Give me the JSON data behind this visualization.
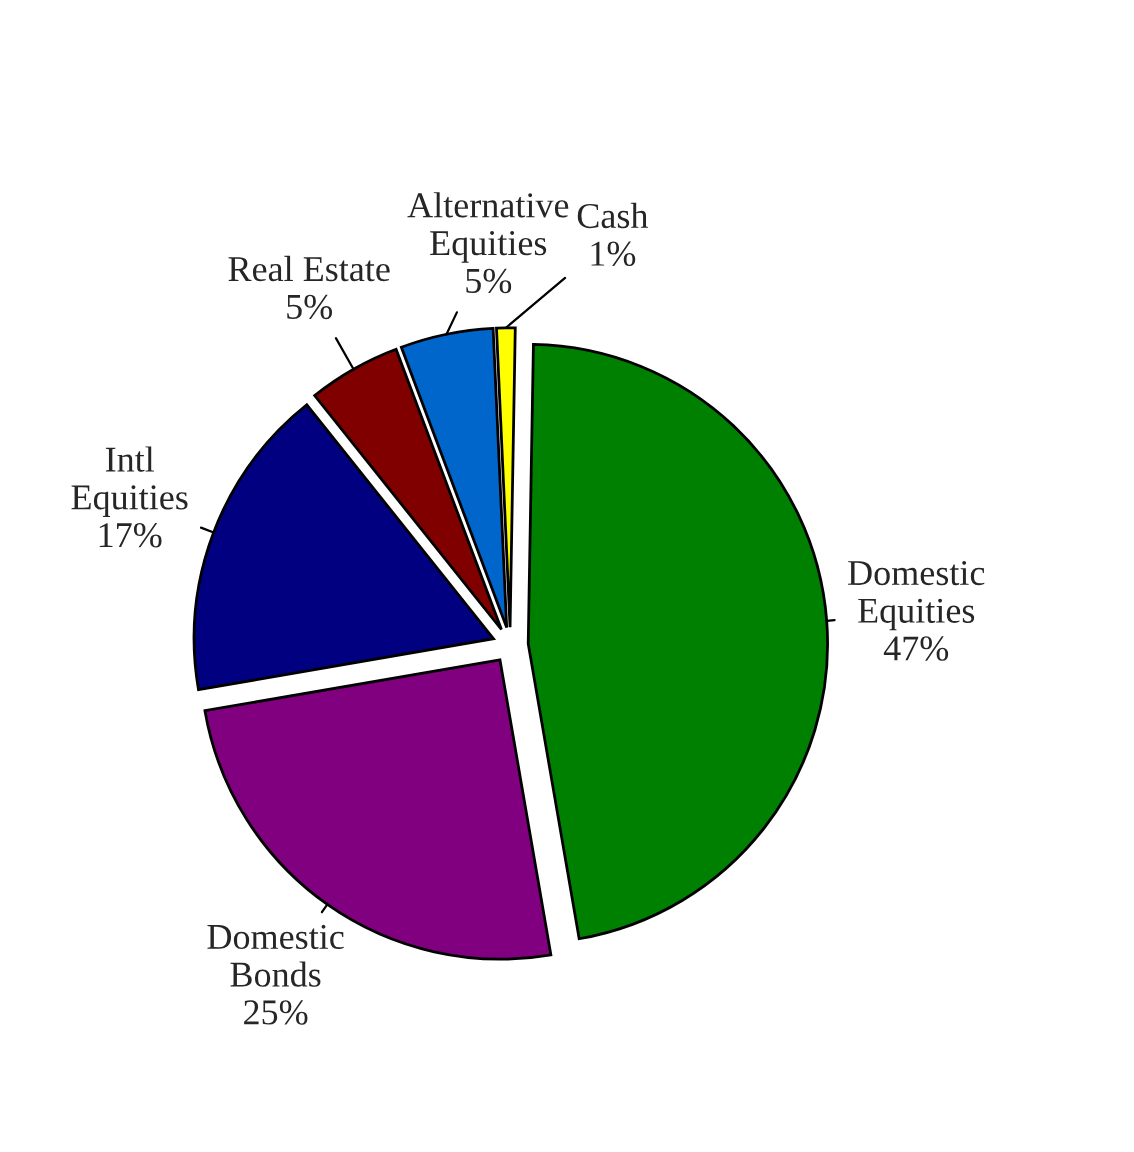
{
  "chart_data": {
    "type": "pie",
    "categories": [
      "Domestic Equities",
      "Domestic Bonds",
      "Intl Equities",
      "Real Estate",
      "Alternative Equities",
      "Cash"
    ],
    "values": [
      47,
      25,
      17,
      5,
      5,
      1
    ],
    "value_labels": [
      "47%",
      "25%",
      "17%",
      "5%",
      "5%",
      "1%"
    ],
    "colors": [
      "#008000",
      "#800080",
      "#000080",
      "#800000",
      "#0066cc",
      "#ffff00"
    ],
    "legend": false
  }
}
